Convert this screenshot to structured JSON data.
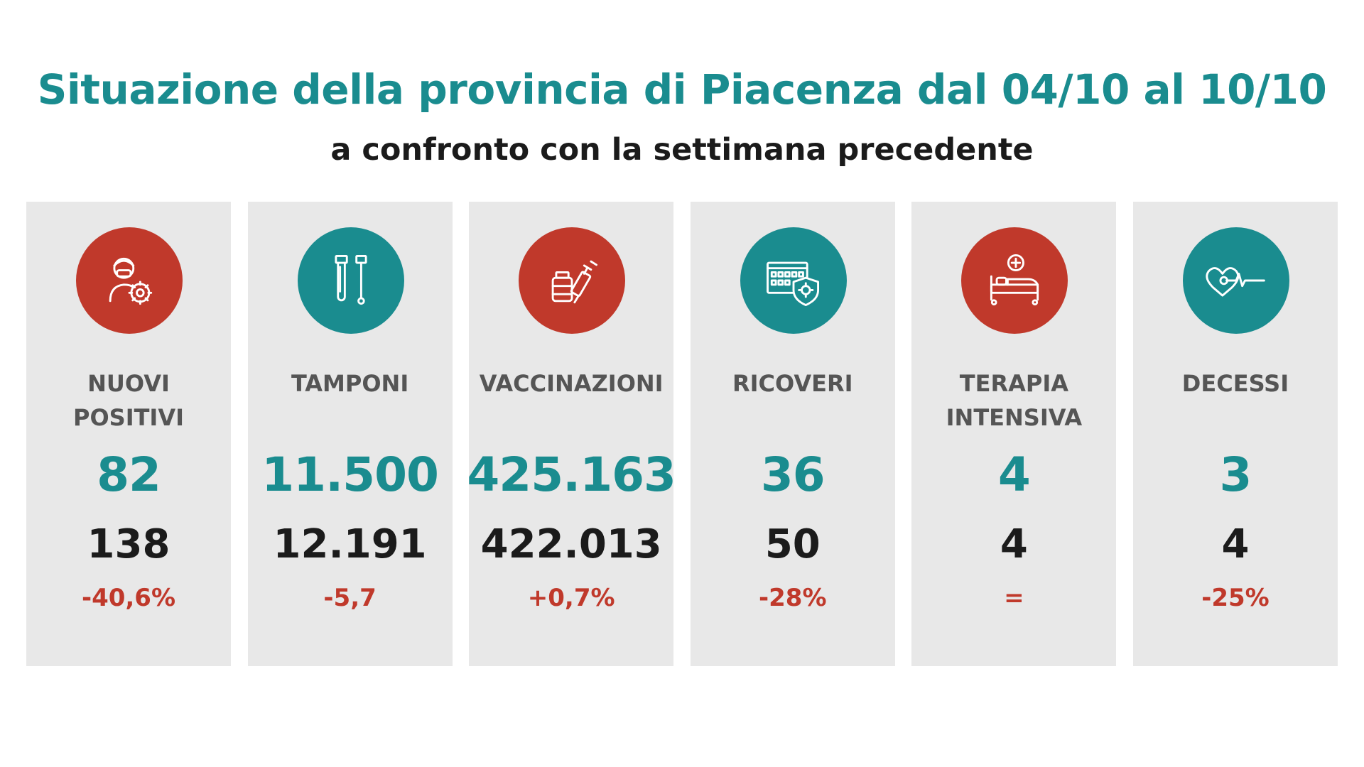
{
  "header": {
    "title": "Situazione della provincia di Piacenza dal 04/10 al 10/10",
    "subtitle": "a confronto con la settimana precedente"
  },
  "colors": {
    "teal": "#1a8c8f",
    "red": "#c0392b",
    "card_bg": "#e8e8e8"
  },
  "cards": [
    {
      "icon": "masked-person-virus-icon",
      "label": "NUOVI\nPOSITIVI",
      "current": "82",
      "previous": "138",
      "delta": "-40,6%"
    },
    {
      "icon": "test-tubes-icon",
      "label": "TAMPONI",
      "current": "11.500",
      "previous": "12.191",
      "delta": "-5,7"
    },
    {
      "icon": "vaccine-syringe-icon",
      "label": "VACCINAZIONI",
      "current": "425.163",
      "previous": "422.013",
      "delta": "+0,7%"
    },
    {
      "icon": "hospital-shield-icon",
      "label": "RICOVERI",
      "current": "36",
      "previous": "50",
      "delta": "-28%"
    },
    {
      "icon": "hospital-bed-icon",
      "label": "TERAPIA\nINTENSIVA",
      "current": "4",
      "previous": "4",
      "delta": "="
    },
    {
      "icon": "heartbeat-icon",
      "label": "DECESSI",
      "current": "3",
      "previous": "4",
      "delta": "-25%"
    }
  ]
}
